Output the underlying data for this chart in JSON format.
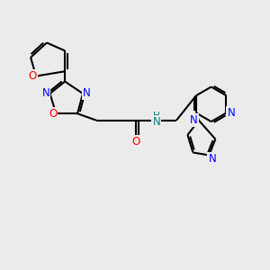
{
  "bg_color": "#ebebeb",
  "bond_color": "#000000",
  "bond_width": 1.5,
  "atom_colors": {
    "O": "#ff0000",
    "N": "#0000ff",
    "NH": "#008080"
  },
  "font_size_atom": 8.5,
  "figsize": [
    3.0,
    3.0
  ],
  "dpi": 100,
  "xlim": [
    0,
    10
  ],
  "ylim": [
    0,
    10
  ]
}
